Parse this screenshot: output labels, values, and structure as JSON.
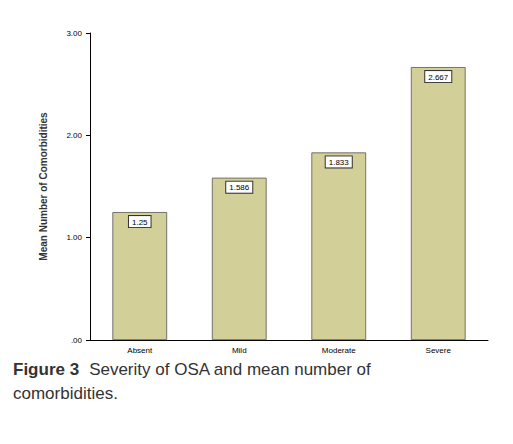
{
  "chart_data": {
    "type": "bar",
    "title": "Figure 3 Severity of OSA and mean number of comorbidities.",
    "y_label": "Mean Number of Comorbidities",
    "categories": [
      "Absent",
      "Mild",
      "Moderate",
      "Severe"
    ],
    "values": [
      1.25,
      1.586,
      1.833,
      2.667
    ],
    "color": "#d3cf98",
    "ylim": [
      0,
      3
    ],
    "yticks": [
      {
        "value": 0,
        "label": ".00"
      },
      {
        "value": 1,
        "label": "1.00"
      },
      {
        "value": 2,
        "label": "2.00"
      },
      {
        "value": 3,
        "label": "3.00"
      }
    ],
    "grid": false,
    "data_labels": true
  }
}
